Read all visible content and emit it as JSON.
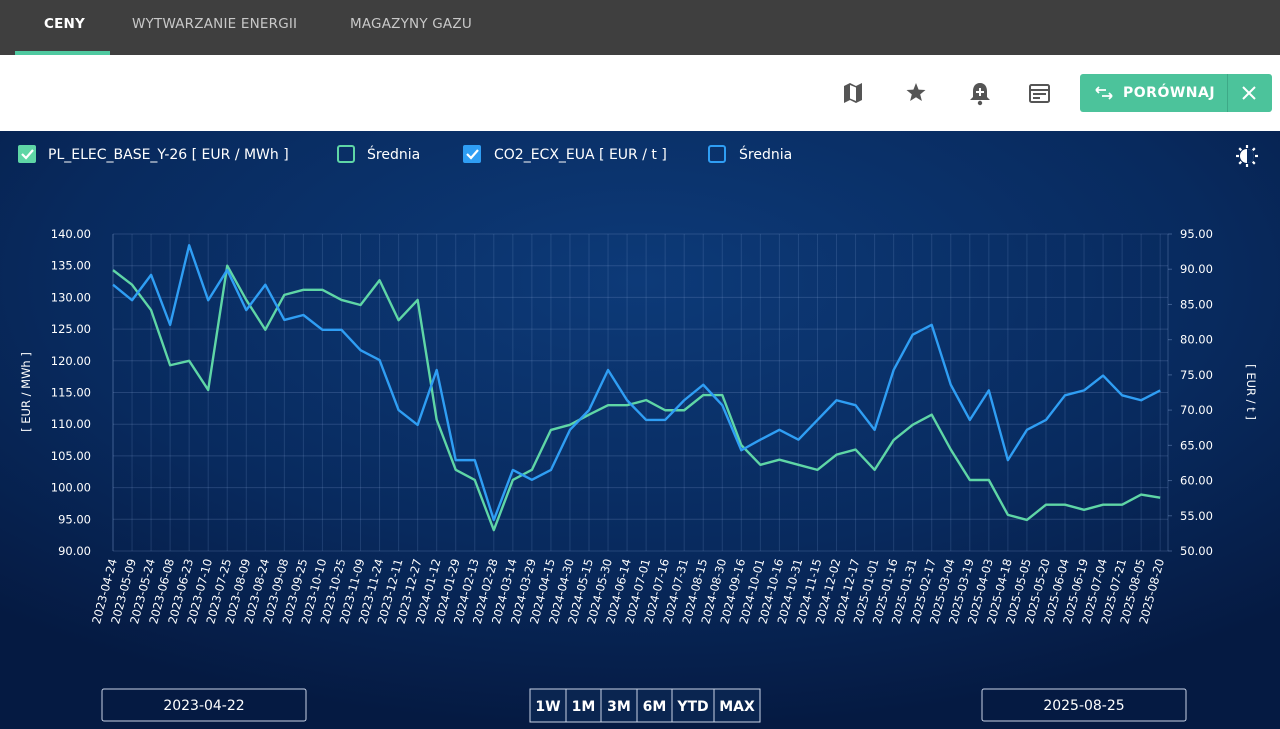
{
  "tabs": [
    "CENY",
    "WYTWARZANIE ENERGII",
    "MAGAZYNY GAZU"
  ],
  "toolbar": {
    "compare_button": "PORÓWNAJ"
  },
  "legend_averages": [
    "Średnia",
    "Średnia"
  ],
  "date_range": {
    "start": "2023-04-22",
    "end": "2025-08-25"
  },
  "range_buttons": [
    "1W",
    "1M",
    "3M",
    "6M",
    "YTD",
    "MAX"
  ],
  "chart_data": {
    "type": "line",
    "ylabel": "[ EUR / MWh ]",
    "y2label": "[ EUR / t ]",
    "grid": true,
    "categories": [
      "2023-04-24",
      "2023-05-09",
      "2023-05-24",
      "2023-06-08",
      "2023-06-23",
      "2023-07-10",
      "2023-07-25",
      "2023-08-09",
      "2023-08-24",
      "2023-09-08",
      "2023-09-25",
      "2023-10-10",
      "2023-10-25",
      "2023-11-09",
      "2023-11-24",
      "2023-12-11",
      "2023-12-27",
      "2024-01-12",
      "2024-01-29",
      "2024-02-13",
      "2024-02-28",
      "2024-03-14",
      "2024-03-29",
      "2024-04-15",
      "2024-04-30",
      "2024-05-15",
      "2024-05-30",
      "2024-06-14",
      "2024-07-01",
      "2024-07-16",
      "2024-07-31",
      "2024-08-15",
      "2024-08-30",
      "2024-09-16",
      "2024-10-01",
      "2024-10-16",
      "2024-10-31",
      "2024-11-15",
      "2024-12-02",
      "2024-12-17",
      "2025-01-01",
      "2025-01-16",
      "2025-01-31",
      "2025-02-17",
      "2025-03-04",
      "2025-03-19",
      "2025-04-03",
      "2025-04-18",
      "2025-05-05",
      "2025-05-20",
      "2025-06-04",
      "2025-06-19",
      "2025-07-04",
      "2025-07-21",
      "2025-08-05",
      "2025-08-20"
    ],
    "series": [
      {
        "name": "PL_ELEC_BASE_Y-26 [ EUR / MWh ]",
        "color": "#5fd6a6",
        "axis": "y",
        "values": [
          134.3,
          132,
          128,
          119.3,
          120,
          115.4,
          135,
          129.6,
          124.9,
          130.4,
          131.2,
          131.2,
          129.6,
          128.8,
          132.7,
          126.4,
          129.6,
          110.7,
          102.8,
          101.2,
          93.3,
          101.2,
          102.8,
          109.1,
          109.9,
          111.5,
          113,
          113,
          113.8,
          112.2,
          112.2,
          114.6,
          114.6,
          106.7,
          103.6,
          104.4,
          103.6,
          102.8,
          105.2,
          106,
          102.8,
          107.5,
          109.9,
          111.5,
          106,
          101.2,
          101.2,
          95.7,
          94.9,
          97.3,
          97.3,
          96.5,
          97.3,
          97.3,
          98.9,
          98.4
        ]
      },
      {
        "name": "CO2_ECX_EUA [ EUR / t ]",
        "color": "#2f9ef4",
        "axis": "y2",
        "values": [
          87.8,
          85.6,
          89.2,
          82.1,
          93.4,
          85.6,
          89.9,
          84.2,
          87.8,
          82.8,
          83.5,
          81.4,
          81.4,
          78.5,
          77.1,
          70,
          67.9,
          75.7,
          62.9,
          62.9,
          54.4,
          61.5,
          60.1,
          61.5,
          67.2,
          70,
          75.7,
          71.4,
          68.6,
          68.6,
          71.4,
          73.6,
          70.7,
          64.3,
          65.8,
          67.2,
          65.8,
          68.6,
          71.4,
          70.7,
          67.2,
          75.7,
          80.7,
          82.1,
          73.6,
          68.6,
          72.8,
          62.9,
          67.2,
          68.6,
          72.1,
          72.8,
          74.9,
          72.1,
          71.4,
          72.8
        ]
      }
    ],
    "ylim": [
      90,
      140
    ],
    "yticks": [
      {
        "value": 90,
        "label": "90.00"
      },
      {
        "value": 95,
        "label": "95.00"
      },
      {
        "value": 100,
        "label": "100.00"
      },
      {
        "value": 105,
        "label": "105.00"
      },
      {
        "value": 110,
        "label": "110.00"
      },
      {
        "value": 115,
        "label": "115.00"
      },
      {
        "value": 120,
        "label": "120.00"
      },
      {
        "value": 125,
        "label": "125.00"
      },
      {
        "value": 130,
        "label": "130.00"
      },
      {
        "value": 135,
        "label": "135.00"
      },
      {
        "value": 140,
        "label": "140.00"
      }
    ],
    "y2lim": [
      50,
      95
    ],
    "y2ticks": [
      {
        "value": 50,
        "label": "50.00"
      },
      {
        "value": 55,
        "label": "55.00"
      },
      {
        "value": 60,
        "label": "60.00"
      },
      {
        "value": 65,
        "label": "65.00"
      },
      {
        "value": 70,
        "label": "70.00"
      },
      {
        "value": 75,
        "label": "75.00"
      },
      {
        "value": 80,
        "label": "80.00"
      },
      {
        "value": 85,
        "label": "85.00"
      },
      {
        "value": 90,
        "label": "90.00"
      },
      {
        "value": 95,
        "label": "95.00"
      }
    ]
  }
}
